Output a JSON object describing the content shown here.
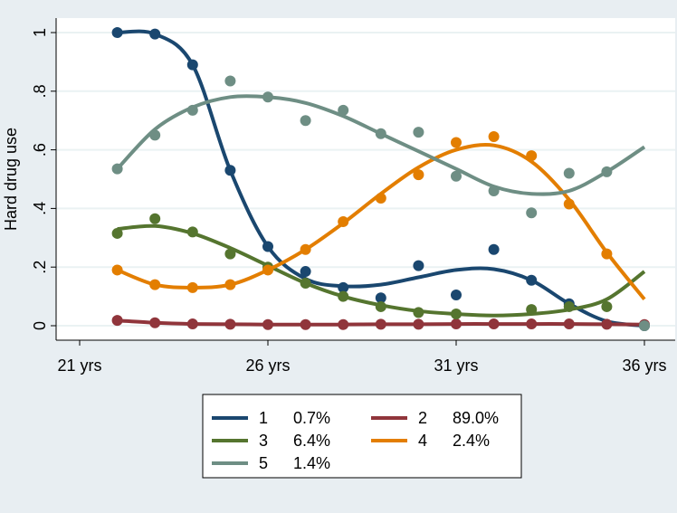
{
  "chart_data": {
    "type": "line",
    "title": "",
    "xlabel": "",
    "ylabel": "Hard drug use",
    "xlim": [
      21,
      36
    ],
    "ylim": [
      0,
      1
    ],
    "x_ticks": [
      21,
      26,
      31,
      36
    ],
    "x_tick_labels": [
      "21 yrs",
      "26 yrs",
      "31 yrs",
      "36 yrs"
    ],
    "y_ticks": [
      0,
      0.2,
      0.4,
      0.6,
      0.8,
      1
    ],
    "y_tick_labels": [
      "0",
      ".2",
      ".4",
      ".6",
      ".8",
      "1"
    ],
    "grid": true,
    "legend_position": "bottom",
    "x": [
      22,
      23,
      24,
      25,
      26,
      27,
      28,
      29,
      30,
      31,
      32,
      33,
      34,
      35,
      36
    ],
    "series": [
      {
        "name": "1",
        "share": "0.7%",
        "color": "#1a476f",
        "fitted": [
          1.0,
          0.995,
          0.89,
          0.53,
          0.27,
          0.16,
          0.135,
          0.14,
          0.165,
          0.19,
          0.193,
          0.155,
          0.075,
          0.015,
          0.0
        ],
        "observed": [
          1.0,
          0.995,
          0.89,
          0.53,
          0.27,
          0.185,
          0.13,
          0.095,
          0.205,
          0.105,
          0.26,
          0.155,
          0.075,
          null,
          0.0
        ]
      },
      {
        "name": "2",
        "share": "89.0%",
        "color": "#90353b",
        "fitted": [
          0.018,
          0.01,
          0.006,
          0.005,
          0.004,
          0.004,
          0.004,
          0.005,
          0.005,
          0.006,
          0.006,
          0.006,
          0.006,
          0.005,
          0.004
        ],
        "observed": [
          0.018,
          0.01,
          0.006,
          0.005,
          0.004,
          0.004,
          0.004,
          0.005,
          0.005,
          0.006,
          0.006,
          0.006,
          0.006,
          0.005,
          0.004
        ]
      },
      {
        "name": "3",
        "share": "6.4%",
        "color": "#55752f",
        "fitted": [
          0.33,
          0.34,
          0.315,
          0.265,
          0.205,
          0.145,
          0.1,
          0.07,
          0.05,
          0.04,
          0.035,
          0.04,
          0.055,
          0.09,
          0.185
        ],
        "observed": [
          0.315,
          0.365,
          0.32,
          0.245,
          0.2,
          0.145,
          0.1,
          0.065,
          0.045,
          0.04,
          null,
          0.055,
          0.065,
          0.065,
          null
        ]
      },
      {
        "name": "4",
        "share": "2.4%",
        "color": "#e37e00",
        "fitted": [
          0.19,
          0.14,
          0.13,
          0.14,
          0.19,
          0.26,
          0.35,
          0.45,
          0.54,
          0.6,
          0.615,
          0.56,
          0.43,
          0.25,
          0.09
        ],
        "observed": [
          0.19,
          0.14,
          0.13,
          0.14,
          0.19,
          0.26,
          0.355,
          0.435,
          0.515,
          0.625,
          0.645,
          0.58,
          0.415,
          0.245,
          null
        ]
      },
      {
        "name": "5",
        "share": "1.4%",
        "color": "#6e8e84",
        "fitted": [
          0.535,
          0.67,
          0.745,
          0.78,
          0.78,
          0.76,
          0.715,
          0.655,
          0.595,
          0.535,
          0.475,
          0.45,
          0.46,
          0.525,
          0.61
        ],
        "observed": [
          0.535,
          0.65,
          0.735,
          0.835,
          0.78,
          0.7,
          0.735,
          0.655,
          0.66,
          0.51,
          0.46,
          0.385,
          0.52,
          0.525,
          0.0
        ]
      }
    ]
  }
}
